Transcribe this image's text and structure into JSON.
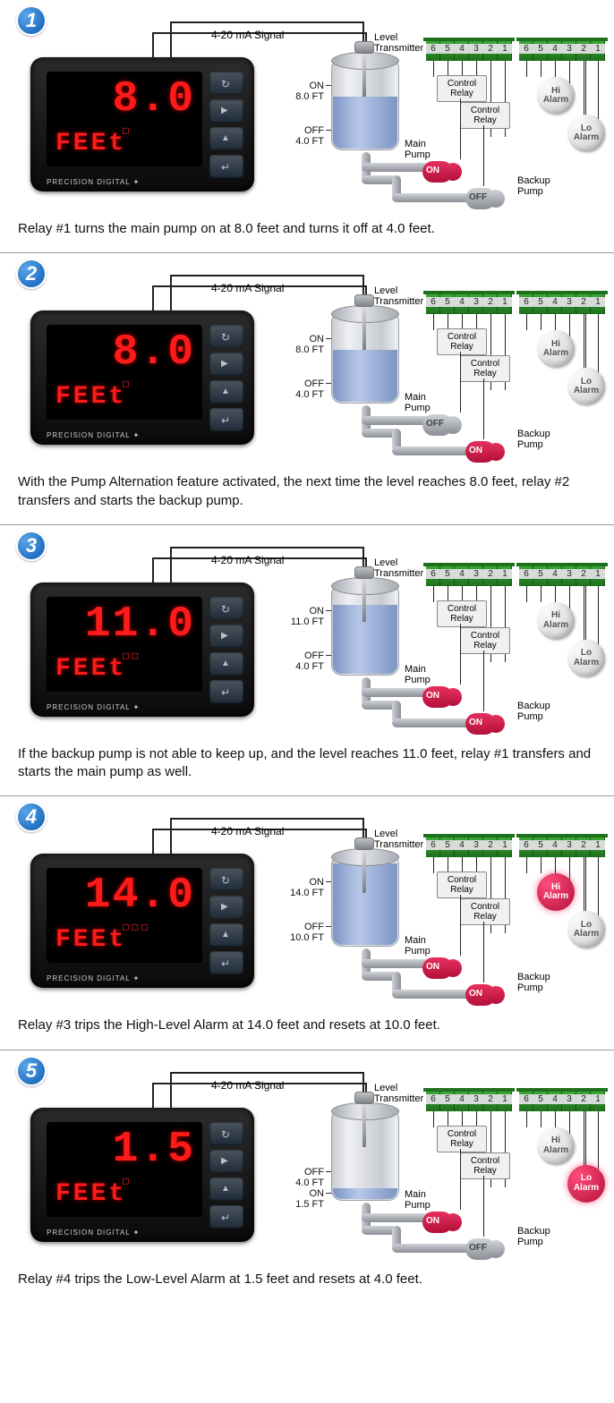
{
  "signal_label": "4-20 mA Signal",
  "transmitter_label": "Level\nTransmitter",
  "brand": "PRECISION DIGITAL ✦",
  "unit": "FEEt",
  "terminal_numbers": [
    "6",
    "5",
    "4",
    "3",
    "2",
    "1"
  ],
  "control_relay": "Control\nRelay",
  "hi_alarm": "Hi\nAlarm",
  "lo_alarm": "Lo\nAlarm",
  "main_pump": "Main\nPump",
  "backup_pump": "Backup\nPump",
  "tag_on": "ON",
  "tag_off": "OFF",
  "colors": {
    "on_pump": "#d81b4b",
    "off_pump": "#a5a9ae",
    "led": "#ff1a1a",
    "terminal": "#2a8a27",
    "alarm_on": "#d81b4b",
    "alarm_off": "#d8dadc"
  },
  "panels": [
    {
      "num": "1",
      "reading": "8.0",
      "indicators": "□",
      "on_label": "ON\n8.0 FT",
      "off_label": "OFF\n4.0 FT",
      "water": 0.6,
      "main_on": true,
      "backup_on": false,
      "hi_on": false,
      "lo_on": false,
      "caption": "Relay #1 turns the main pump on at 8.0 feet and turns it off at 4.0 feet."
    },
    {
      "num": "2",
      "reading": "8.0",
      "indicators": "□",
      "on_label": "ON\n8.0 FT",
      "off_label": "OFF\n4.0 FT",
      "water": 0.6,
      "main_on": false,
      "backup_on": true,
      "hi_on": false,
      "lo_on": false,
      "caption": "With the Pump Alternation feature activated, the next time the level reaches 8.0 feet, relay #2 transfers and starts the backup pump."
    },
    {
      "num": "3",
      "reading": "11.0",
      "indicators": "□□",
      "on_label": "ON\n11.0 FT",
      "off_label": "OFF\n4.0 FT",
      "water": 0.8,
      "main_on": true,
      "backup_on": true,
      "hi_on": false,
      "lo_on": false,
      "caption": "If the backup pump is not able to keep up, and the level reaches 11.0 feet, relay #1 transfers and starts the main pump as well."
    },
    {
      "num": "4",
      "reading": "14.0",
      "indicators": "□□□",
      "on_label": "ON\n14.0 FT",
      "off_label": "OFF\n10.0 FT",
      "water": 0.95,
      "main_on": true,
      "backup_on": true,
      "hi_on": true,
      "lo_on": false,
      "caption": "Relay #3 trips the High-Level Alarm at 14.0 feet and resets at 10.0 feet."
    },
    {
      "num": "5",
      "reading": "1.5",
      "indicators": "□",
      "on_label": "ON\n1.5 FT",
      "off_label": "OFF\n4.0 FT",
      "lvl_invert": true,
      "water": 0.12,
      "main_on": true,
      "backup_on": false,
      "hi_on": false,
      "lo_on": true,
      "caption": "Relay #4 trips the Low-Level Alarm at 1.5 feet and resets at 4.0 feet."
    }
  ]
}
